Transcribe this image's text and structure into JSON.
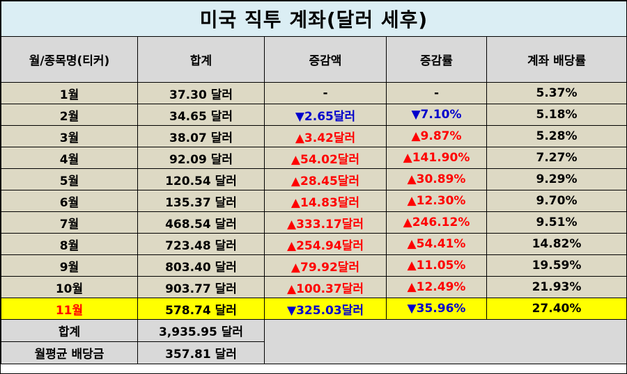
{
  "title": "미국 직투 계좌(달러 세후)",
  "headers": [
    "월/종목명(티커)",
    "합계",
    "증감액",
    "증감률",
    "계좌 배당률"
  ],
  "rows": [
    {
      "month": "1월",
      "total": "37.30 달러",
      "change": "-",
      "rate": "-",
      "yield": "5.37%",
      "dir": "none"
    },
    {
      "month": "2월",
      "total": "34.65 달러",
      "change": "▼2.65달러",
      "rate": "▼7.10%",
      "yield": "5.18%",
      "dir": "down"
    },
    {
      "month": "3월",
      "total": "38.07 달러",
      "change": "▲3.42달러",
      "rate": "▲9.87%",
      "yield": "5.28%",
      "dir": "up"
    },
    {
      "month": "4월",
      "total": "92.09 달러",
      "change": "▲54.02달러",
      "rate": "▲141.90%",
      "yield": "7.27%",
      "dir": "up"
    },
    {
      "month": "5월",
      "total": "120.54 달러",
      "change": "▲28.45달러",
      "rate": "▲30.89%",
      "yield": "9.29%",
      "dir": "up"
    },
    {
      "month": "6월",
      "total": "135.37 달러",
      "change": "▲14.83달러",
      "rate": "▲12.30%",
      "yield": "9.70%",
      "dir": "up"
    },
    {
      "month": "7월",
      "total": "468.54 달러",
      "change": "▲333.17달러",
      "rate": "▲246.12%",
      "yield": "9.51%",
      "dir": "up"
    },
    {
      "month": "8월",
      "total": "723.48 달러",
      "change": "▲254.94달러",
      "rate": "▲54.41%",
      "yield": "14.82%",
      "dir": "up"
    },
    {
      "month": "9월",
      "total": "803.40 달러",
      "change": "▲79.92달러",
      "rate": "▲11.05%",
      "yield": "19.59%",
      "dir": "up"
    },
    {
      "month": "10월",
      "total": "903.77 달러",
      "change": "▲100.37달러",
      "rate": "▲12.49%",
      "yield": "21.93%",
      "dir": "up"
    }
  ],
  "highlight": {
    "month": "11월",
    "total": "578.74 달러",
    "change": "▼325.03달러",
    "rate": "▼35.96%",
    "yield": "27.40%",
    "dir": "down",
    "row_color": "#ffff00",
    "month_color": "#ff0000"
  },
  "summary": [
    {
      "label": "합계",
      "value": "3,935.95 달러"
    },
    {
      "label": "월평균 배당금",
      "value": "357.81 달러"
    }
  ],
  "colors": {
    "title_bg": "#dbeef4",
    "header_bg": "#d9d9d9",
    "row_bg": "#ddd9c4",
    "up": "#ff0000",
    "down": "#0000cc"
  }
}
